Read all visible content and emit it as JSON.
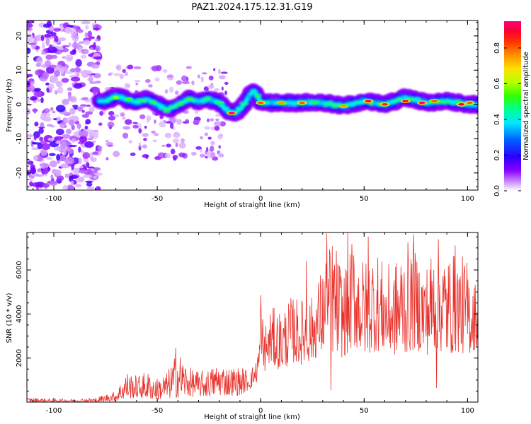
{
  "figure": {
    "title": "PAZ1.2024.175.12.31.G19"
  },
  "chart_data": [
    {
      "type": "heatmap",
      "xlabel": "Height of straight line (km)",
      "ylabel": "Frequency (Hz)",
      "xlim": [
        -113,
        105
      ],
      "ylim": [
        -25,
        24.5
      ],
      "xticks": [
        -100,
        -50,
        0,
        50,
        100
      ],
      "yticks": [
        20,
        10,
        0,
        -10,
        -20
      ],
      "colorbar": {
        "label": "Normalized spectral amplitude",
        "range": [
          0.0,
          0.95
        ],
        "ticks": [
          0.0,
          0.2,
          0.4,
          0.6,
          0.8
        ],
        "colormap": "gist_rainbow_r (white at 0)"
      },
      "ridge": {
        "description": "dominant frequency track",
        "x": [
          -75,
          -70,
          -65,
          -60,
          -55,
          -50,
          -45,
          -40,
          -35,
          -30,
          -25,
          -20,
          -16,
          -12,
          -8,
          -5,
          -3,
          0,
          10,
          20,
          30,
          40,
          50,
          60,
          70,
          80,
          90,
          100,
          105
        ],
        "y": [
          1,
          2.5,
          1.5,
          0.5,
          1.5,
          0,
          -1.5,
          0,
          1.5,
          1,
          1.5,
          0.5,
          -2,
          -2.5,
          0,
          3,
          4,
          0.5,
          0.5,
          0.5,
          0.5,
          -0.5,
          1,
          0,
          2,
          0.5,
          1,
          0,
          0
        ]
      },
      "peak_amplitude_regions": [
        {
          "x": 0,
          "y": 0.5,
          "amplitude": 0.8
        },
        {
          "x": 10,
          "y": 0.5,
          "amplitude": 0.75
        },
        {
          "x": 20,
          "y": 0.5,
          "amplitude": 0.8
        },
        {
          "x": 40,
          "y": -0.5,
          "amplitude": 0.75
        },
        {
          "x": 52,
          "y": 1.0,
          "amplitude": 0.9
        },
        {
          "x": 60,
          "y": 0.0,
          "amplitude": 0.85
        },
        {
          "x": 70,
          "y": 1.0,
          "amplitude": 0.9
        },
        {
          "x": 78,
          "y": 0.5,
          "amplitude": 0.95
        },
        {
          "x": 84,
          "y": 1.0,
          "amplitude": 0.8
        },
        {
          "x": 97,
          "y": 0.0,
          "amplitude": 0.9
        },
        {
          "x": 101,
          "y": 0.5,
          "amplitude": 0.8
        },
        {
          "x": -14,
          "y": -2.5,
          "amplitude": 0.95
        },
        {
          "x": -70,
          "y": 2.0,
          "amplitude": 0.6
        },
        {
          "x": -64,
          "y": 1.5,
          "amplitude": 0.55
        },
        {
          "x": -20,
          "y": 0.5,
          "amplitude": 0.5
        }
      ],
      "noise_region": {
        "x_range": [
          -113,
          -78
        ],
        "description": "scattered low-amplitude patches across all frequencies"
      }
    },
    {
      "type": "line",
      "xlabel": "Height of straight line (km)",
      "ylabel": "SNR (10 * v/v)",
      "xlim": [
        -113,
        105
      ],
      "ylim": [
        0,
        7700
      ],
      "xticks": [
        -100,
        -50,
        0,
        50,
        100
      ],
      "yticks": [
        2000,
        4000,
        6000
      ],
      "line_color": "#e8312b",
      "envelope": {
        "x": [
          -113,
          -100,
          -90,
          -80,
          -70,
          -65,
          -60,
          -55,
          -50,
          -45,
          -40,
          -35,
          -30,
          -25,
          -20,
          -15,
          -10,
          -5,
          -2,
          0,
          2,
          5,
          10,
          15,
          20,
          25,
          30,
          35,
          40,
          45,
          50,
          55,
          60,
          65,
          70,
          75,
          80,
          85,
          90,
          95,
          100,
          105
        ],
        "low": [
          0,
          0,
          0,
          0,
          50,
          150,
          200,
          150,
          100,
          150,
          200,
          250,
          250,
          250,
          300,
          300,
          300,
          600,
          900,
          300,
          1400,
          1700,
          1400,
          1800,
          1700,
          1900,
          2200,
          2200,
          2000,
          2500,
          2100,
          2300,
          2300,
          2100,
          2200,
          2400,
          2100,
          2400,
          2100,
          2300,
          2100,
          2500
        ],
        "high": [
          200,
          150,
          150,
          200,
          500,
          1400,
          1200,
          1400,
          1100,
          1400,
          2400,
          1600,
          1400,
          1500,
          1800,
          1600,
          1600,
          1500,
          1900,
          4800,
          3500,
          4300,
          4200,
          4800,
          4700,
          4800,
          6300,
          7600,
          6000,
          7700,
          6400,
          7200,
          6200,
          6400,
          7400,
          6800,
          6300,
          7600,
          6800,
          6800,
          6500,
          5200
        ]
      },
      "notable_peaks": [
        {
          "x": -41,
          "y": 2450
        },
        {
          "x": 0,
          "y": 4850
        },
        {
          "x": 22,
          "y": 6400
        },
        {
          "x": 32,
          "y": 7650
        },
        {
          "x": 42,
          "y": 7750
        },
        {
          "x": 52,
          "y": 7500
        },
        {
          "x": 74,
          "y": 7600
        },
        {
          "x": 94,
          "y": 7100
        }
      ],
      "notable_dips": [
        {
          "x": 34,
          "y": 550
        },
        {
          "x": 85,
          "y": 650
        }
      ]
    }
  ]
}
